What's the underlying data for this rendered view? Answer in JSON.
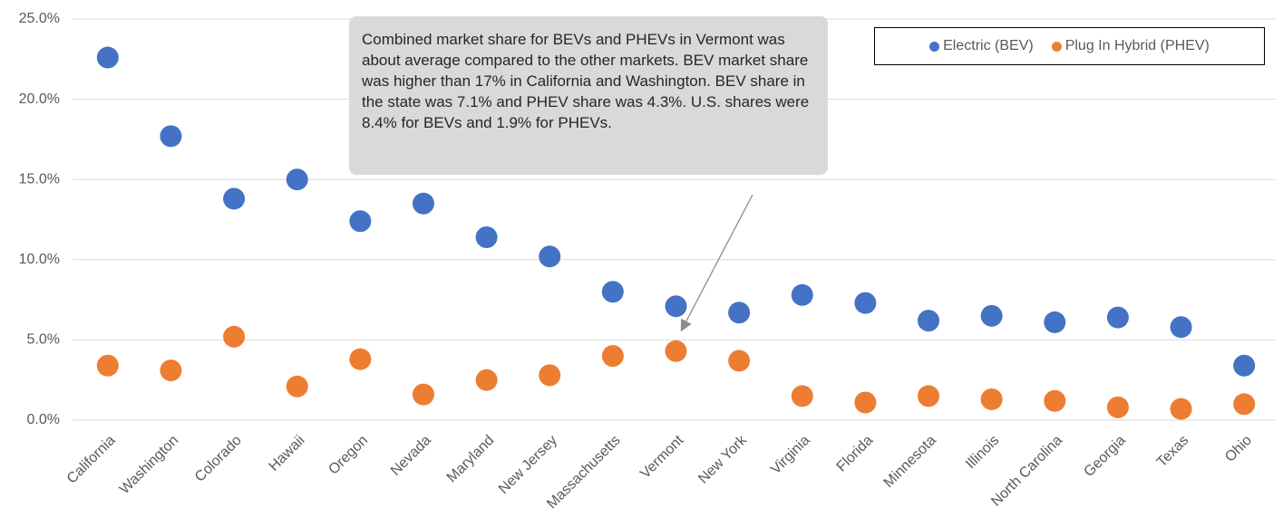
{
  "chart_data": {
    "type": "scatter",
    "annotation": "Combined market share for BEVs and PHEVs in Vermont was about average compared to the other markets. BEV market share was higher than 17% in California and Washington. BEV share in the state was 7.1% and PHEV share was 4.3%. U.S. shares were 8.4% for BEVs and 1.9% for PHEVs.",
    "categories": [
      "California",
      "Washington",
      "Colorado",
      "Hawaii",
      "Oregon",
      "Nevada",
      "Maryland",
      "New Jersey",
      "Massachusetts",
      "Vermont",
      "New York",
      "Virginia",
      "Florida",
      "Minnesota",
      "Illinois",
      "North Carolina",
      "Georgia",
      "Texas",
      "Ohio"
    ],
    "series": [
      {
        "name": "Electric (BEV)",
        "color": "#4472c4",
        "values": [
          22.6,
          17.7,
          13.8,
          15.0,
          12.4,
          13.5,
          11.4,
          10.2,
          8.0,
          7.1,
          6.7,
          7.8,
          7.3,
          6.2,
          6.5,
          6.1,
          6.4,
          5.8,
          3.4
        ]
      },
      {
        "name": "Plug In Hybrid (PHEV)",
        "color": "#ed7d31",
        "values": [
          3.4,
          3.1,
          5.2,
          2.1,
          3.8,
          1.6,
          2.5,
          2.8,
          4.0,
          4.3,
          3.7,
          1.5,
          1.1,
          1.5,
          1.3,
          1.2,
          0.8,
          0.7,
          1.0
        ]
      }
    ],
    "ylim": [
      0,
      25
    ],
    "yticks": [
      {
        "value": 0,
        "label": "0.0%"
      },
      {
        "value": 5,
        "label": "5.0%"
      },
      {
        "value": 10,
        "label": "10.0%"
      },
      {
        "value": 15,
        "label": "15.0%"
      },
      {
        "value": 20,
        "label": "20.0%"
      },
      {
        "value": 25,
        "label": "25.0%"
      }
    ],
    "grid": true,
    "legend": "top-right"
  }
}
